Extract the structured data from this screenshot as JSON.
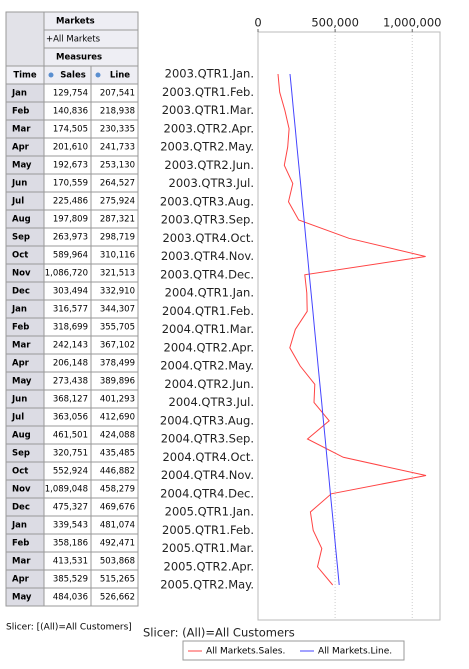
{
  "table": {
    "header": "Markets",
    "member": "+All Markets",
    "measures": "Measures",
    "columns": [
      "Time",
      "Sales",
      "Line"
    ],
    "months": [
      "Jan",
      "Feb",
      "Mar",
      "Apr",
      "May",
      "Jun",
      "Jul",
      "Aug",
      "Sep",
      "Oct",
      "Nov",
      "Dec",
      "Jan",
      "Feb",
      "Mar",
      "Apr",
      "May",
      "Jun",
      "Jul",
      "Aug",
      "Sep",
      "Oct",
      "Nov",
      "Dec",
      "Jan",
      "Feb",
      "Mar",
      "Apr",
      "May"
    ],
    "slicer": "Slicer: [(All)=All Customers]"
  },
  "chart_data": {
    "type": "line",
    "orientation": "horizontal",
    "categories": [
      "2003.QTR1.Jan.",
      "2003.QTR1.Feb.",
      "2003.QTR1.Mar.",
      "2003.QTR2.Apr.",
      "2003.QTR2.May.",
      "2003.QTR2.Jun.",
      "2003.QTR3.Jul.",
      "2003.QTR3.Aug.",
      "2003.QTR3.Sep.",
      "2003.QTR4.Oct.",
      "2003.QTR4.Nov.",
      "2003.QTR4.Dec.",
      "2004.QTR1.Jan.",
      "2004.QTR1.Feb.",
      "2004.QTR1.Mar.",
      "2004.QTR2.Apr.",
      "2004.QTR2.May.",
      "2004.QTR2.Jun.",
      "2004.QTR3.Jul.",
      "2004.QTR3.Aug.",
      "2004.QTR3.Sep.",
      "2004.QTR4.Oct.",
      "2004.QTR4.Nov.",
      "2004.QTR4.Dec.",
      "2005.QTR1.Jan.",
      "2005.QTR1.Feb.",
      "2005.QTR1.Mar.",
      "2005.QTR2.Apr.",
      "2005.QTR2.May."
    ],
    "series": [
      {
        "name": "All Markets.Sales.",
        "color": "#ff4444",
        "values": [
          129754,
          140836,
          174505,
          201610,
          192673,
          170559,
          225486,
          197809,
          263973,
          589964,
          1086720,
          303494,
          316577,
          318699,
          242143,
          206148,
          273438,
          368127,
          363056,
          461501,
          320751,
          552924,
          1089048,
          475327,
          339543,
          358186,
          413531,
          385529,
          484036
        ],
        "value_labels": [
          "129,754",
          "140,836",
          "174,505",
          "201,610",
          "192,673",
          "170,559",
          "225,486",
          "197,809",
          "263,973",
          "589,964",
          "1,086,720",
          "303,494",
          "316,577",
          "318,699",
          "242,143",
          "206,148",
          "273,438",
          "368,127",
          "363,056",
          "461,501",
          "320,751",
          "552,924",
          "1,089,048",
          "475,327",
          "339,543",
          "358,186",
          "413,531",
          "385,529",
          "484,036"
        ]
      },
      {
        "name": "All Markets.Line.",
        "color": "#4444ff",
        "values": [
          207541,
          218938,
          230335,
          241733,
          253130,
          264527,
          275924,
          287321,
          298719,
          310116,
          321513,
          332910,
          344307,
          355705,
          367102,
          378499,
          389896,
          401293,
          412690,
          424088,
          435485,
          446882,
          458279,
          469676,
          481074,
          492471,
          503868,
          515265,
          526662
        ],
        "value_labels": [
          "207,541",
          "218,938",
          "230,335",
          "241,733",
          "253,130",
          "264,527",
          "275,924",
          "287,321",
          "298,719",
          "310,116",
          "321,513",
          "332,910",
          "344,307",
          "355,705",
          "367,102",
          "378,499",
          "389,896",
          "401,293",
          "412,690",
          "424,088",
          "435,485",
          "446,882",
          "458,279",
          "469,676",
          "481,074",
          "492,471",
          "503,868",
          "515,265",
          "526,662"
        ]
      }
    ],
    "xlim": [
      0,
      1180000
    ],
    "xticks": [
      0,
      {
        "value": 500000,
        "label": "500,000"
      },
      {
        "value": 1000000,
        "label": "1,000,000"
      }
    ],
    "grid": true,
    "slicer": "Slicer:  (All)=All Customers"
  }
}
